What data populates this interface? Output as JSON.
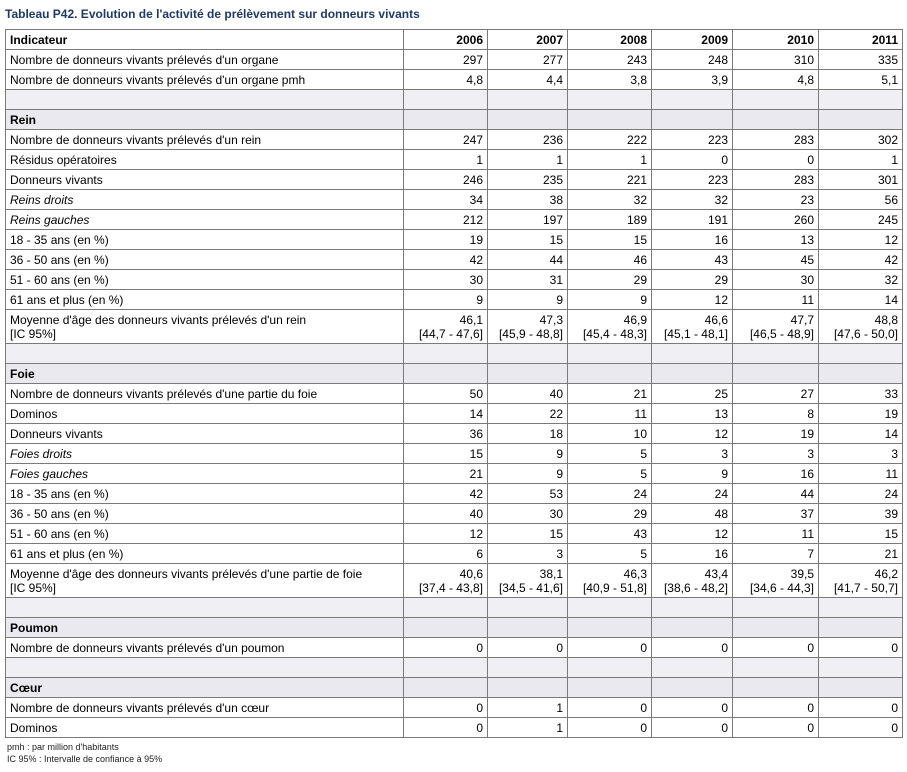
{
  "title": "Tableau P42. Evolution de l'activité de prélèvement sur donneurs vivants",
  "header": {
    "label": "Indicateur",
    "years": [
      "2006",
      "2007",
      "2008",
      "2009",
      "2010",
      "2011"
    ]
  },
  "rows": [
    {
      "type": "data",
      "label": "Nombre de donneurs vivants prélevés d'un organe",
      "values": [
        "297",
        "277",
        "243",
        "248",
        "310",
        "335"
      ]
    },
    {
      "type": "data",
      "label": "Nombre de donneurs vivants prélevés d'un organe pmh",
      "values": [
        "4,8",
        "4,4",
        "3,8",
        "3,9",
        "4,8",
        "5,1"
      ]
    },
    {
      "type": "blank"
    },
    {
      "type": "section",
      "label": "Rein"
    },
    {
      "type": "data",
      "label": "Nombre de donneurs vivants prélevés d'un rein",
      "values": [
        "247",
        "236",
        "222",
        "223",
        "283",
        "302"
      ]
    },
    {
      "type": "data",
      "label": "Résidus opératoires",
      "values": [
        "1",
        "1",
        "1",
        "0",
        "0",
        "1"
      ]
    },
    {
      "type": "data",
      "label": "Donneurs vivants",
      "values": [
        "246",
        "235",
        "221",
        "223",
        "283",
        "301"
      ]
    },
    {
      "type": "data",
      "italic": true,
      "label": "Reins droits",
      "values": [
        "34",
        "38",
        "32",
        "32",
        "23",
        "56"
      ]
    },
    {
      "type": "data",
      "italic": true,
      "label": "Reins gauches",
      "values": [
        "212",
        "197",
        "189",
        "191",
        "260",
        "245"
      ]
    },
    {
      "type": "data",
      "label": "18 - 35 ans (en %)",
      "values": [
        "19",
        "15",
        "15",
        "16",
        "13",
        "12"
      ]
    },
    {
      "type": "data",
      "label": "36 - 50 ans (en %)",
      "values": [
        "42",
        "44",
        "46",
        "43",
        "45",
        "42"
      ]
    },
    {
      "type": "data",
      "label": "51 - 60 ans (en %)",
      "values": [
        "30",
        "31",
        "29",
        "29",
        "30",
        "32"
      ]
    },
    {
      "type": "data",
      "label": "61 ans et plus (en %)",
      "values": [
        "9",
        "9",
        "9",
        "12",
        "11",
        "14"
      ]
    },
    {
      "type": "two",
      "label": "Moyenne d'âge des donneurs vivants prélevés d'un rein",
      "label2": "[IC 95%]",
      "values": [
        "46,1",
        "47,3",
        "46,9",
        "46,6",
        "47,7",
        "48,8"
      ],
      "values2": [
        "[44,7 - 47,6]",
        "[45,9 - 48,8]",
        "[45,4 - 48,3]",
        "[45,1 - 48,1]",
        "[46,5 - 48,9]",
        "[47,6 - 50,0]"
      ]
    },
    {
      "type": "blank"
    },
    {
      "type": "section",
      "label": "Foie"
    },
    {
      "type": "data",
      "label": "Nombre de donneurs vivants prélevés d'une partie du foie",
      "values": [
        "50",
        "40",
        "21",
        "25",
        "27",
        "33"
      ]
    },
    {
      "type": "data",
      "label": "Dominos",
      "values": [
        "14",
        "22",
        "11",
        "13",
        "8",
        "19"
      ]
    },
    {
      "type": "data",
      "label": "Donneurs vivants",
      "values": [
        "36",
        "18",
        "10",
        "12",
        "19",
        "14"
      ]
    },
    {
      "type": "data",
      "italic": true,
      "label": "Foies droits",
      "values": [
        "15",
        "9",
        "5",
        "3",
        "3",
        "3"
      ]
    },
    {
      "type": "data",
      "italic": true,
      "label": "Foies gauches",
      "values": [
        "21",
        "9",
        "5",
        "9",
        "16",
        "11"
      ]
    },
    {
      "type": "data",
      "label": "18 - 35 ans (en %)",
      "values": [
        "42",
        "53",
        "24",
        "24",
        "44",
        "24"
      ]
    },
    {
      "type": "data",
      "label": "36 - 50 ans (en %)",
      "values": [
        "40",
        "30",
        "29",
        "48",
        "37",
        "39"
      ]
    },
    {
      "type": "data",
      "label": "51 - 60 ans (en %)",
      "values": [
        "12",
        "15",
        "43",
        "12",
        "11",
        "15"
      ]
    },
    {
      "type": "data",
      "label": "61 ans et plus (en %)",
      "values": [
        "6",
        "3",
        "5",
        "16",
        "7",
        "21"
      ]
    },
    {
      "type": "two",
      "label": "Moyenne d'âge des donneurs vivants prélevés d'une partie de foie",
      "label2": "[IC 95%]",
      "values": [
        "40,6",
        "38,1",
        "46,3",
        "43,4",
        "39,5",
        "46,2"
      ],
      "values2": [
        "[37,4 - 43,8]",
        "[34,5 - 41,6]",
        "[40,9 - 51,8]",
        "[38,6 - 48,2]",
        "[34,6 - 44,3]",
        "[41,7 - 50,7]"
      ]
    },
    {
      "type": "blank"
    },
    {
      "type": "section",
      "label": "Poumon"
    },
    {
      "type": "data",
      "label": "Nombre de donneurs vivants prélevés d'un poumon",
      "values": [
        "0",
        "0",
        "0",
        "0",
        "0",
        "0"
      ]
    },
    {
      "type": "blank"
    },
    {
      "type": "section",
      "label": "Cœur"
    },
    {
      "type": "data",
      "label": "Nombre de donneurs vivants prélevés d'un cœur",
      "values": [
        "0",
        "1",
        "0",
        "0",
        "0",
        "0"
      ]
    },
    {
      "type": "data",
      "label": "Dominos",
      "values": [
        "0",
        "1",
        "0",
        "0",
        "0",
        "0"
      ]
    }
  ],
  "footnotes": [
    "pmh : par million d'habitants",
    "IC 95% : Intervalle de confiance à 95%"
  ]
}
